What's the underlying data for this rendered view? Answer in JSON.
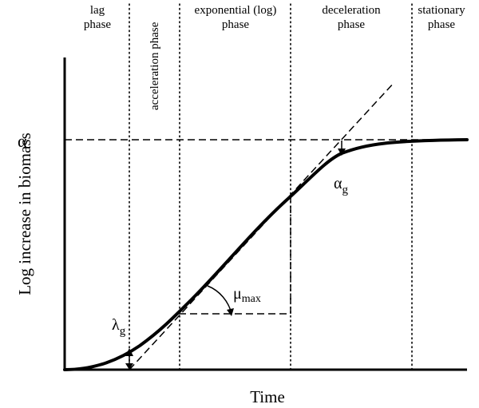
{
  "phases": [
    {
      "lines": [
        "lag",
        "phase"
      ]
    },
    {
      "lines": [
        "acceleration phase"
      ]
    },
    {
      "lines": [
        "exponential (log)",
        "phase"
      ]
    },
    {
      "lines": [
        "deceleration",
        "phase"
      ]
    },
    {
      "lines": [
        "stationary",
        "phase"
      ]
    }
  ],
  "axes": {
    "x_title": "Time",
    "y_title": "Log increase in biomass"
  },
  "symbols": {
    "alpha": "α",
    "alpha_g": {
      "base": "α",
      "sub": "g"
    },
    "mu_max": {
      "base": "μ",
      "sub": "max"
    },
    "lambda_g": {
      "base": "λ",
      "sub": "g"
    }
  }
}
